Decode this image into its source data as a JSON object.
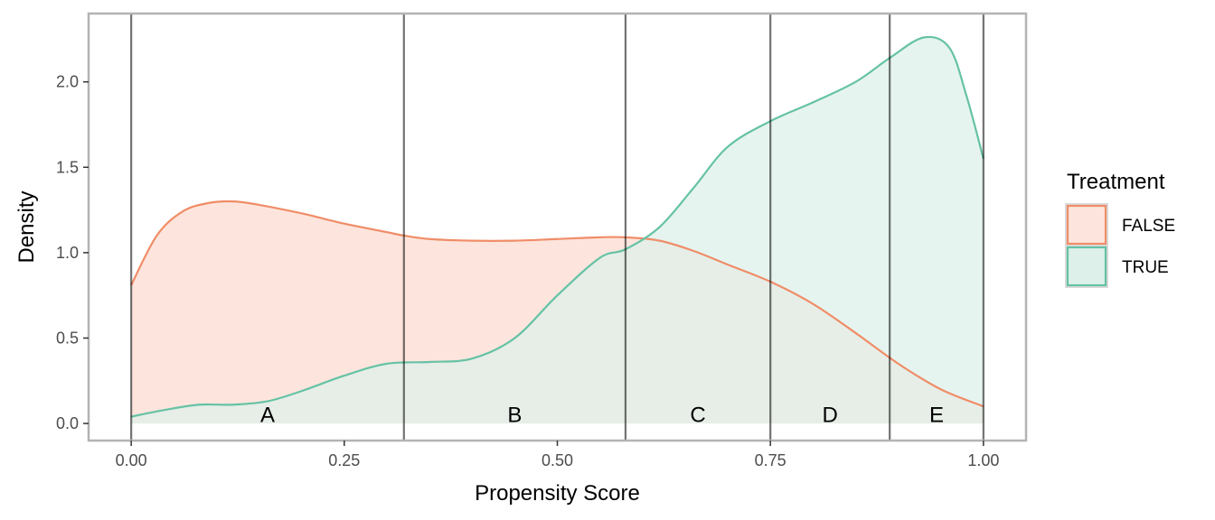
{
  "chart_data": {
    "type": "area",
    "xlabel": "Propensity Score",
    "ylabel": "Density",
    "xlim": [
      -0.05,
      1.05
    ],
    "ylim": [
      -0.1,
      2.4
    ],
    "x_ticks": [
      0.0,
      0.25,
      0.5,
      0.75,
      1.0
    ],
    "x_tick_labels": [
      "0.00",
      "0.25",
      "0.50",
      "0.75",
      "1.00"
    ],
    "y_ticks": [
      0.0,
      0.5,
      1.0,
      1.5,
      2.0
    ],
    "y_tick_labels": [
      "0.0",
      "0.5",
      "1.0",
      "1.5",
      "2.0"
    ],
    "grid": false,
    "legend": {
      "title": "Treatment",
      "position": "right"
    },
    "series": [
      {
        "name": "FALSE",
        "line_color": "#f08d68",
        "fill_color": "#fde5dd",
        "x": [
          0.0,
          0.03,
          0.06,
          0.09,
          0.12,
          0.15,
          0.2,
          0.25,
          0.3,
          0.32,
          0.35,
          0.4,
          0.45,
          0.5,
          0.55,
          0.58,
          0.62,
          0.66,
          0.7,
          0.75,
          0.8,
          0.85,
          0.9,
          0.95,
          1.0
        ],
        "y": [
          0.81,
          1.1,
          1.24,
          1.29,
          1.3,
          1.28,
          1.23,
          1.17,
          1.12,
          1.1,
          1.08,
          1.07,
          1.07,
          1.08,
          1.09,
          1.09,
          1.07,
          1.01,
          0.93,
          0.83,
          0.7,
          0.53,
          0.35,
          0.2,
          0.1
        ]
      },
      {
        "name": "TRUE",
        "line_color": "#66c2a5",
        "fill_color": "#ddf0ea",
        "x": [
          0.0,
          0.04,
          0.08,
          0.12,
          0.16,
          0.2,
          0.25,
          0.3,
          0.35,
          0.4,
          0.45,
          0.5,
          0.55,
          0.58,
          0.62,
          0.66,
          0.7,
          0.75,
          0.8,
          0.85,
          0.89,
          0.93,
          0.96,
          0.98,
          1.0
        ],
        "y": [
          0.04,
          0.08,
          0.11,
          0.11,
          0.13,
          0.19,
          0.28,
          0.35,
          0.36,
          0.38,
          0.5,
          0.75,
          0.97,
          1.02,
          1.15,
          1.38,
          1.62,
          1.77,
          1.88,
          2.0,
          2.14,
          2.26,
          2.2,
          1.92,
          1.55
        ]
      }
    ],
    "stratum_cutoffs": [
      0.0,
      0.32,
      0.58,
      0.75,
      0.89,
      1.0
    ],
    "strata_labels": [
      {
        "label": "A",
        "x": 0.16
      },
      {
        "label": "B",
        "x": 0.45
      },
      {
        "label": "C",
        "x": 0.665
      },
      {
        "label": "D",
        "x": 0.82
      },
      {
        "label": "E",
        "x": 0.945
      }
    ],
    "strata_label_y": 0.05
  }
}
